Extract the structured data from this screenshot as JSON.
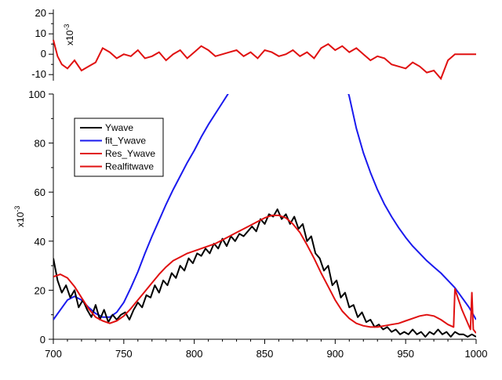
{
  "chart_data": [
    {
      "type": "line",
      "panel": "residual",
      "ylim": [
        -13,
        22
      ],
      "xlim": [
        700,
        1000
      ],
      "yticks": [
        "-10",
        "0",
        "10",
        "20"
      ],
      "yscale_label": "x10",
      "yscale_exp": "-3",
      "series": [
        {
          "name": "Res_Ywave",
          "color": "#e01010",
          "x": [
            700,
            703,
            706,
            710,
            715,
            720,
            725,
            730,
            735,
            740,
            745,
            750,
            755,
            760,
            765,
            770,
            775,
            780,
            785,
            790,
            795,
            800,
            805,
            810,
            815,
            820,
            825,
            830,
            835,
            840,
            845,
            850,
            855,
            860,
            865,
            870,
            875,
            880,
            885,
            890,
            895,
            900,
            905,
            910,
            915,
            920,
            925,
            930,
            935,
            940,
            945,
            950,
            955,
            960,
            965,
            970,
            975,
            980,
            985,
            990,
            995,
            1000
          ],
          "y": [
            7,
            -1,
            -5,
            -7,
            -3,
            -8,
            -6,
            -4,
            3,
            1,
            -2,
            0,
            -1,
            2,
            -2,
            -1,
            1,
            -3,
            0,
            2,
            -2,
            1,
            4,
            2,
            -1,
            0,
            1,
            2,
            -1,
            1,
            -2,
            2,
            1,
            -1,
            0,
            2,
            -1,
            1,
            -2,
            3,
            5,
            2,
            4,
            1,
            3,
            0,
            -3,
            -1,
            -2,
            -5,
            -6,
            -7,
            -4,
            -6,
            -9,
            -8,
            -12,
            -3,
            0,
            0,
            0,
            0
          ]
        }
      ]
    },
    {
      "type": "line",
      "panel": "main",
      "ylim": [
        0,
        100
      ],
      "xlim": [
        700,
        1000
      ],
      "xticks": [
        "700",
        "750",
        "800",
        "850",
        "900",
        "950",
        "1000"
      ],
      "yticks": [
        "0",
        "20",
        "40",
        "60",
        "80",
        "100"
      ],
      "yscale_label": "x10",
      "yscale_exp": "-3",
      "legend": {
        "placement": "top-left",
        "entries": [
          "Ywave",
          "fit_Ywave",
          "Res_Ywave",
          "Realfitwave"
        ]
      },
      "series": [
        {
          "name": "Ywave",
          "color": "#000000",
          "x": [
            700,
            703,
            706,
            709,
            712,
            715,
            718,
            721,
            724,
            727,
            730,
            733,
            736,
            739,
            742,
            745,
            748,
            751,
            754,
            757,
            760,
            763,
            766,
            769,
            772,
            775,
            778,
            781,
            784,
            787,
            790,
            793,
            796,
            799,
            802,
            805,
            808,
            811,
            814,
            817,
            820,
            823,
            826,
            829,
            832,
            835,
            838,
            841,
            844,
            847,
            850,
            853,
            856,
            859,
            862,
            865,
            868,
            871,
            874,
            877,
            880,
            883,
            886,
            889,
            892,
            895,
            898,
            901,
            904,
            907,
            910,
            913,
            916,
            919,
            922,
            925,
            928,
            931,
            934,
            937,
            940,
            943,
            946,
            949,
            952,
            955,
            958,
            961,
            964,
            967,
            970,
            973,
            976,
            979,
            982,
            985,
            988,
            991,
            994,
            997,
            1000
          ],
          "y": [
            33,
            24,
            19,
            22,
            17,
            20,
            13,
            16,
            12,
            9,
            14,
            8,
            12,
            7,
            10,
            8,
            10,
            11,
            8,
            12,
            15,
            13,
            18,
            17,
            22,
            19,
            24,
            22,
            27,
            25,
            30,
            28,
            33,
            31,
            35,
            34,
            37,
            35,
            39,
            37,
            41,
            38,
            42,
            40,
            43,
            42,
            44,
            46,
            44,
            49,
            47,
            51,
            50,
            53,
            49,
            51,
            47,
            50,
            45,
            47,
            40,
            42,
            35,
            33,
            28,
            30,
            22,
            24,
            17,
            19,
            13,
            14,
            9,
            11,
            7,
            8,
            5,
            6,
            4,
            5,
            3,
            4,
            2,
            3,
            2,
            4,
            2,
            3,
            1,
            3,
            2,
            4,
            2,
            3,
            1,
            3,
            2,
            2,
            1,
            2,
            1
          ]
        },
        {
          "name": "fit_Ywave",
          "color": "#1a1aee",
          "x": [
            700,
            705,
            710,
            715,
            720,
            725,
            730,
            735,
            740,
            745,
            750,
            755,
            760,
            765,
            770,
            775,
            780,
            785,
            790,
            795,
            800,
            805,
            810,
            815,
            820,
            825,
            826,
            909,
            910,
            915,
            920,
            925,
            930,
            935,
            940,
            945,
            950,
            955,
            960,
            965,
            970,
            975,
            980,
            985,
            990,
            995,
            1000
          ],
          "y": [
            8,
            12,
            16,
            17.5,
            16,
            13,
            10.5,
            9,
            9,
            11,
            15,
            21,
            27.5,
            35,
            42,
            48.5,
            55,
            61,
            66.5,
            72,
            77,
            82.5,
            87.5,
            92,
            96.5,
            101,
            101,
            101,
            99,
            86,
            76,
            68,
            61,
            55,
            50,
            45.5,
            41.5,
            38,
            35,
            32,
            29.5,
            27,
            24,
            21,
            17,
            13,
            8
          ]
        },
        {
          "name": "Res_Ywave",
          "color": "#e01010",
          "x": [],
          "y": []
        },
        {
          "name": "Realfitwave",
          "color": "#e01010",
          "x": [
            700,
            705,
            710,
            715,
            720,
            725,
            730,
            735,
            740,
            745,
            750,
            755,
            760,
            765,
            770,
            775,
            780,
            785,
            790,
            795,
            800,
            805,
            810,
            815,
            820,
            825,
            830,
            835,
            840,
            845,
            850,
            855,
            860,
            865,
            870,
            875,
            880,
            885,
            890,
            895,
            900,
            905,
            910,
            915,
            920,
            925,
            930,
            935,
            940,
            945,
            950,
            955,
            960,
            965,
            970,
            975,
            980,
            984,
            985,
            987,
            990,
            993,
            996,
            997,
            998,
            1000
          ],
          "y": [
            25.5,
            26.5,
            25,
            21.5,
            17,
            12.5,
            9,
            7.5,
            6.5,
            7.5,
            9.5,
            12.5,
            16,
            19.5,
            23,
            26.5,
            29.5,
            32,
            33.5,
            35,
            36,
            37,
            38,
            39,
            40.5,
            42,
            43.5,
            45,
            46.5,
            48,
            49.5,
            50.5,
            50.5,
            49.5,
            47,
            43.5,
            38.5,
            33,
            27,
            21.5,
            16,
            11.5,
            8.5,
            6.5,
            5.5,
            5,
            5,
            5.5,
            6,
            6.5,
            7.5,
            8.5,
            9.5,
            10,
            9.5,
            8,
            6,
            5,
            20.5,
            17,
            12,
            8,
            4,
            19,
            4,
            2.5
          ]
        }
      ]
    }
  ]
}
